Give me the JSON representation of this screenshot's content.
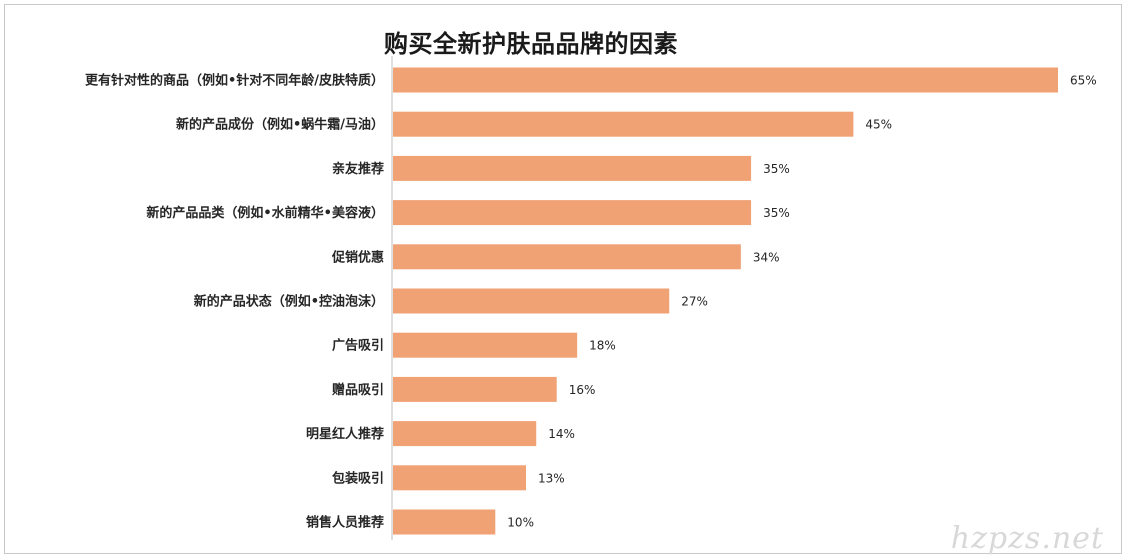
{
  "chart_data": {
    "type": "bar",
    "orientation": "horizontal",
    "title": "购买全新护肤品品牌的因素",
    "categories": [
      "更有针对性的商品（例如•针对不同年龄/皮肤特质）",
      "新的产品成份（例如•蜗牛霜/马油）",
      "亲友推荐",
      "新的产品品类（例如•水前精华•美容液）",
      "促销优惠",
      "新的产品状态（例如•控油泡沫）",
      "广告吸引",
      "赠品吸引",
      "明星红人推荐",
      "包装吸引",
      "销售人员推荐"
    ],
    "values": [
      65,
      45,
      35,
      35,
      34,
      27,
      18,
      16,
      14,
      13,
      10
    ],
    "value_labels": [
      "65%",
      "45%",
      "35%",
      "35%",
      "34%",
      "27%",
      "18%",
      "16%",
      "14%",
      "13%",
      "10%"
    ],
    "unit": "%",
    "xlim": [
      0,
      65
    ],
    "bar_color": "#f0a274",
    "grid": false,
    "legend": "none"
  },
  "watermark": "hzpzs.net"
}
